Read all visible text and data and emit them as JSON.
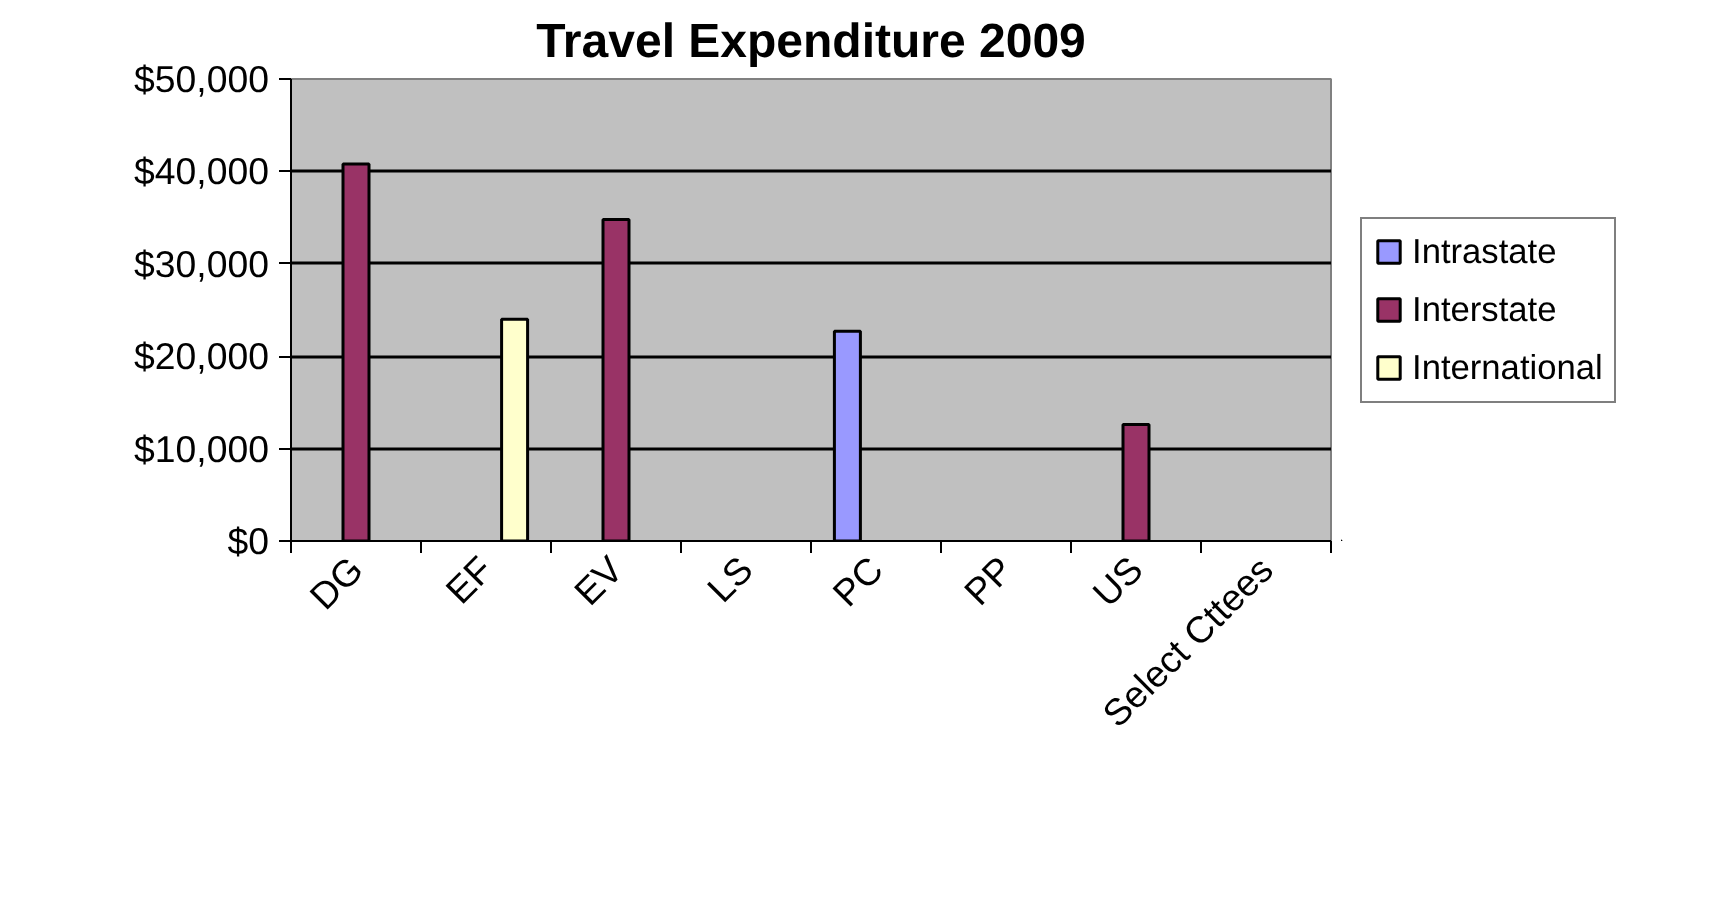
{
  "chart_data": {
    "type": "bar",
    "title": "Travel Expenditure 2009",
    "categories": [
      "DG",
      "EF",
      "EV",
      "LS",
      "PC",
      "PP",
      "US",
      "Select Cttees"
    ],
    "series": [
      {
        "name": "Intrastate",
        "color": "#9999ff",
        "values": [
          null,
          null,
          null,
          null,
          22700,
          null,
          null,
          null
        ]
      },
      {
        "name": "Interstate",
        "color": "#993366",
        "values": [
          40800,
          null,
          34800,
          null,
          null,
          null,
          12600,
          null
        ]
      },
      {
        "name": "International",
        "color": "#ffffcc",
        "values": [
          null,
          24000,
          null,
          null,
          null,
          null,
          null,
          null
        ]
      }
    ],
    "ylim": [
      0,
      50000
    ],
    "yticks": [
      {
        "value": 0,
        "label": "$0"
      },
      {
        "value": 10000,
        "label": "$10,000"
      },
      {
        "value": 20000,
        "label": "$20,000"
      },
      {
        "value": 30000,
        "label": "$30,000"
      },
      {
        "value": 40000,
        "label": "$40,000"
      },
      {
        "value": 50000,
        "label": "$50,000"
      }
    ],
    "grid": "y",
    "legend": "right"
  }
}
